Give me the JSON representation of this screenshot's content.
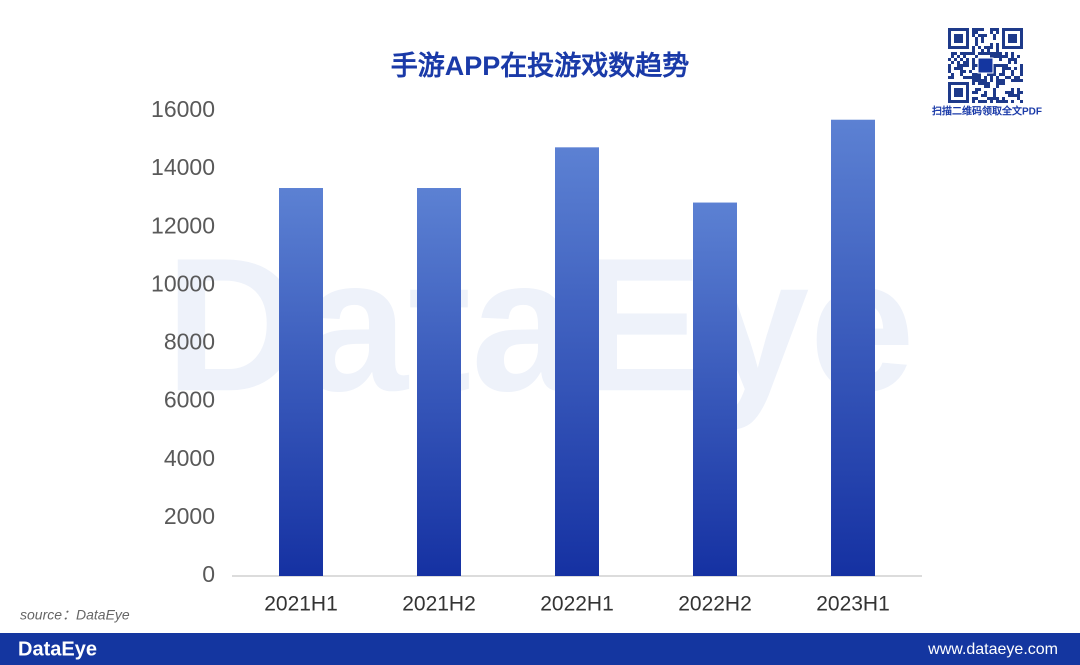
{
  "chart_data": {
    "type": "bar",
    "title": "手游APP在投游戏数趋势",
    "categories": [
      "2021H1",
      "2021H2",
      "2022H1",
      "2022H2",
      "2023H1"
    ],
    "values": [
      13350,
      13350,
      14750,
      12850,
      15700
    ],
    "gradient": [
      "#5c81d3",
      "#1531a2"
    ],
    "ylim": [
      0,
      16000
    ],
    "yticks": [
      0,
      2000,
      4000,
      6000,
      8000,
      10000,
      12000,
      14000,
      16000
    ],
    "grid": false
  },
  "watermark": "DataEye",
  "qr_caption": "扫描二维码领取全文PDF",
  "source": "source：DataEye",
  "footer": {
    "logo": "DataEye",
    "url": "www.dataeye.com"
  }
}
